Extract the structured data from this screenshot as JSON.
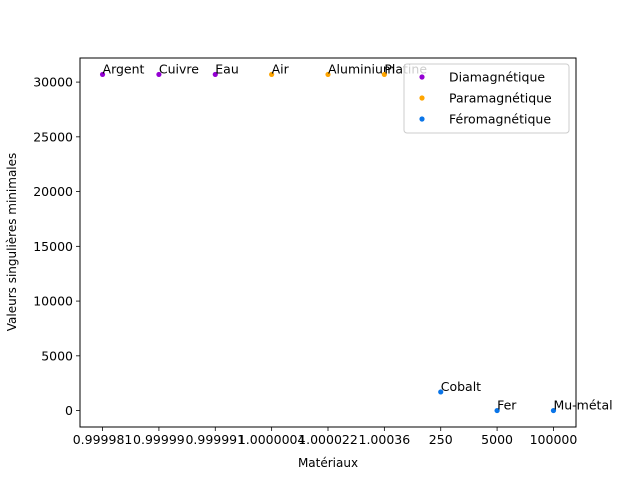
{
  "chart_data": {
    "type": "scatter",
    "xlabel": "Matériaux",
    "ylabel": "Valeurs singulières minimales",
    "categories": [
      "0.999981",
      "0.99999",
      "0.999991",
      "1.0000004",
      "1.000022",
      "1.00036",
      "250",
      "5000",
      "100000"
    ],
    "ylim": [
      -1500,
      32200
    ],
    "yticks": [
      0,
      5000,
      10000,
      15000,
      20000,
      25000,
      30000
    ],
    "legend_position": "top-right",
    "grid": false,
    "series": [
      {
        "name": "Diamagnétique",
        "color": "#9400d3",
        "points": [
          {
            "x": "0.999981",
            "y": 30700,
            "label": "Argent"
          },
          {
            "x": "0.99999",
            "y": 30700,
            "label": "Cuivre"
          },
          {
            "x": "0.999991",
            "y": 30700,
            "label": "Eau"
          }
        ]
      },
      {
        "name": "Paramagnétique",
        "color": "#ffa500",
        "points": [
          {
            "x": "1.0000004",
            "y": 30700,
            "label": "Air"
          },
          {
            "x": "1.000022",
            "y": 30700,
            "label": "Aluminium"
          },
          {
            "x": "1.00036",
            "y": 30700,
            "label": "Platine"
          }
        ]
      },
      {
        "name": "Féromagnétique",
        "color": "#0a75e8",
        "points": [
          {
            "x": "250",
            "y": 1700,
            "label": "Cobalt"
          },
          {
            "x": "5000",
            "y": 0,
            "label": "Fer"
          },
          {
            "x": "100000",
            "y": 0,
            "label": "Mu-métal"
          }
        ]
      }
    ]
  }
}
